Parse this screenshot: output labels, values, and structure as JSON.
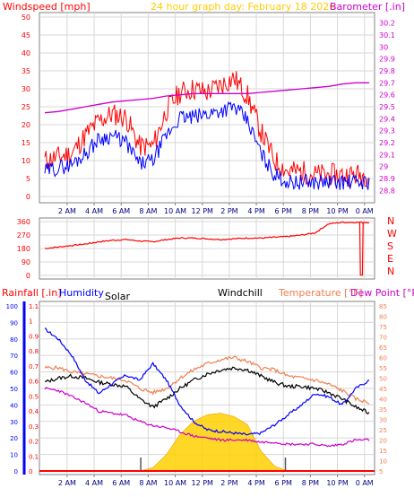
{
  "header": {
    "title": "24 hour graph day:  February 18 2026",
    "windspeed_label": "Windspeed [mph]",
    "barometer_label": "Barometer [.in]"
  },
  "bottom_header": {
    "rainfall_label": "Rainfall [.in]",
    "humidity_label": "Humidity",
    "solar_label": "Solar",
    "windchill_label": "Windchill",
    "temperature_label": "Temperature [°F]",
    "dewpoint_label": "Dew Point [°F]"
  },
  "colors": {
    "windspeed": "#ff0000",
    "windgust_avg": "#0000ff",
    "barometer": "#cc00cc",
    "direction": "#ff0000",
    "rainfall": "#ff0000",
    "humidity": "#0000ff",
    "temperature": "#f08050",
    "dewpoint": "#cc00cc",
    "windchill": "#000000",
    "solar": "#ffd000",
    "title": "#ffcc00"
  },
  "x_ticks": [
    "2 AM",
    "4 AM",
    "6 AM",
    "8 AM",
    "10 AM",
    "12 PM",
    "2 PM",
    "4 PM",
    "6 PM",
    "8 PM",
    "10 PM",
    "0 AM"
  ],
  "chart_data": [
    {
      "type": "line",
      "title": "24 hour graph day:  February 18 2026",
      "x_hours": [
        0,
        1,
        2,
        3,
        4,
        5,
        6,
        7,
        8,
        9,
        10,
        11,
        12,
        13,
        14,
        15,
        16,
        17,
        18,
        19,
        20,
        21,
        22,
        23,
        24
      ],
      "y_left": {
        "label": "Windspeed [mph]",
        "ticks": [
          0,
          5,
          10,
          15,
          20,
          25,
          30,
          35,
          40,
          45,
          50
        ],
        "range": [
          0,
          50
        ]
      },
      "y_right": {
        "label": "Barometer [.in]",
        "ticks": [
          "28.8",
          "28.9",
          "29",
          "29.1",
          "29.2",
          "29.3",
          "29.4",
          "29.5",
          "29.6",
          "29.7",
          "29.8",
          "29.9",
          "30",
          "30.1",
          "30.2"
        ],
        "range": [
          28.75,
          30.25
        ]
      },
      "series": [
        {
          "key": "windspeed",
          "axis": "left",
          "values": [
            10,
            11,
            12,
            17,
            21,
            23,
            22,
            14,
            14,
            24,
            29,
            30,
            29,
            31,
            33,
            28,
            18,
            10,
            7,
            7,
            6,
            6,
            6,
            6,
            6
          ]
        },
        {
          "key": "windgust_avg",
          "axis": "left",
          "values": [
            7,
            8,
            9,
            12,
            16,
            17,
            15,
            9,
            10,
            17,
            22,
            22,
            23,
            24,
            25,
            21,
            12,
            6,
            4,
            4,
            4,
            4,
            4,
            4,
            4
          ]
        },
        {
          "key": "barometer",
          "axis": "right",
          "values": [
            29.45,
            29.46,
            29.48,
            29.5,
            29.52,
            29.54,
            29.55,
            29.56,
            29.57,
            29.59,
            29.6,
            29.61,
            29.61,
            29.61,
            29.61,
            29.61,
            29.62,
            29.63,
            29.64,
            29.65,
            29.66,
            29.67,
            29.69,
            29.7,
            29.7
          ]
        }
      ]
    },
    {
      "type": "line",
      "y_left_ticks": [
        0,
        90,
        180,
        270,
        360
      ],
      "y_right_labels": [
        "N",
        "W",
        "S",
        "E",
        "N"
      ],
      "series": [
        {
          "key": "direction",
          "values": [
            180,
            190,
            200,
            210,
            225,
            235,
            240,
            230,
            225,
            240,
            250,
            250,
            245,
            240,
            245,
            250,
            250,
            255,
            260,
            270,
            285,
            345,
            355,
            355,
            355
          ]
        }
      ]
    },
    {
      "type": "line",
      "y_left_ticks": [
        0,
        10,
        20,
        30,
        40,
        50,
        60,
        70,
        80,
        90,
        100
      ],
      "y_rain_ticks": [
        "0",
        "0.1",
        "0.2",
        "0.3",
        "0.4",
        "0.5",
        "0.6",
        "0.7",
        "0.8",
        "0.9",
        "1",
        "1.1"
      ],
      "y_right_ticks": [
        5,
        10,
        15,
        20,
        25,
        30,
        35,
        40,
        45,
        50,
        55,
        60,
        65,
        70,
        75,
        80,
        85
      ],
      "series": [
        {
          "key": "humidity",
          "axis": "left",
          "values": [
            86,
            80,
            70,
            55,
            47,
            53,
            58,
            55,
            65,
            55,
            40,
            30,
            25,
            24,
            23,
            22,
            23,
            28,
            34,
            40,
            47,
            45,
            40,
            50,
            55
          ]
        },
        {
          "key": "temperature",
          "axis": "right",
          "values": [
            55,
            55,
            53,
            52,
            51,
            50,
            49,
            45,
            43,
            45,
            50,
            54,
            57,
            59,
            60,
            58,
            55,
            54,
            51,
            50,
            49,
            47,
            44,
            40,
            38
          ]
        },
        {
          "key": "windchill",
          "axis": "right",
          "values": [
            48,
            50,
            51,
            50,
            48,
            47,
            46,
            40,
            36,
            40,
            45,
            49,
            52,
            54,
            55,
            54,
            51,
            48,
            46,
            46,
            45,
            43,
            40,
            36,
            33
          ]
        },
        {
          "key": "dewpoint",
          "axis": "right",
          "values": [
            45,
            44,
            41,
            38,
            34,
            33,
            32,
            29,
            27,
            26,
            24,
            22,
            21,
            20,
            20,
            20,
            19,
            19,
            18,
            18,
            18,
            17,
            18,
            20,
            20
          ]
        },
        {
          "key": "solar",
          "axis": "left",
          "values": [
            0,
            0,
            0,
            0,
            0,
            0,
            0,
            0,
            2,
            10,
            22,
            30,
            34,
            35,
            33,
            28,
            12,
            3,
            0,
            0,
            0,
            0,
            0,
            0,
            0
          ]
        },
        {
          "key": "rainfall",
          "axis": "rain",
          "values": [
            0,
            0,
            0,
            0,
            0,
            0,
            0,
            0,
            0,
            0,
            0,
            0,
            0,
            0,
            0,
            0,
            0,
            0,
            0,
            0,
            0,
            0,
            0,
            0,
            0
          ]
        }
      ]
    }
  ]
}
